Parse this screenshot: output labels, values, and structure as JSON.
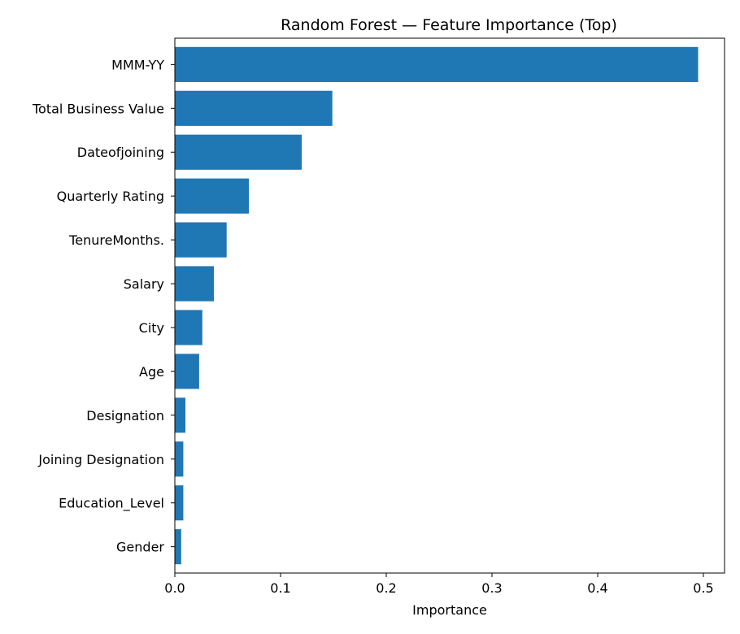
{
  "chart_data": {
    "type": "bar",
    "orientation": "horizontal",
    "title": "Random Forest — Feature Importance (Top)",
    "xlabel": "Importance",
    "ylabel": "",
    "xlim": [
      0,
      0.52
    ],
    "x_ticks": [
      0.0,
      0.1,
      0.2,
      0.3,
      0.4,
      0.5
    ],
    "x_tick_labels": [
      "0.0",
      "0.1",
      "0.2",
      "0.3",
      "0.4",
      "0.5"
    ],
    "grid": false,
    "legend": "none",
    "bar_color": "#1f77b4",
    "categories": [
      "MMM-YY",
      "Total Business Value",
      "Dateofjoining",
      "Quarterly Rating",
      "TenureMonths.",
      "Salary",
      "City",
      "Age",
      "Designation",
      "Joining Designation",
      "Education_Level",
      "Gender"
    ],
    "values": [
      0.495,
      0.149,
      0.12,
      0.07,
      0.049,
      0.037,
      0.026,
      0.023,
      0.01,
      0.008,
      0.008,
      0.006
    ]
  }
}
